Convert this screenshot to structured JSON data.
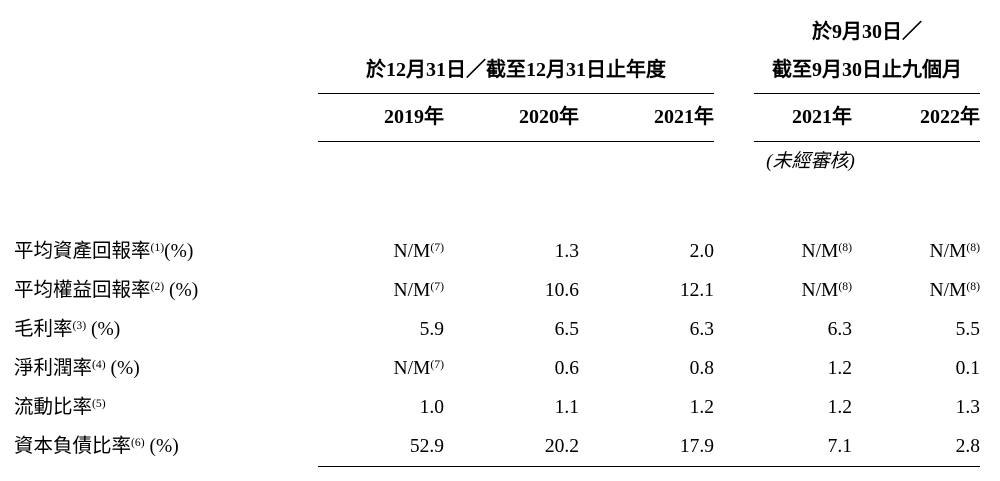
{
  "header": {
    "group1_title": "於12月31日／截至12月31日止年度",
    "group2_title_line1": "於9月30日／",
    "group2_title_line2": "截至9月30日止九個月",
    "years": [
      "2019年",
      "2020年",
      "2021年",
      "2021年",
      "2022年"
    ],
    "unaudited_note": "(未經審核)"
  },
  "rows": [
    {
      "label": "平均資產回報率",
      "label_sup": "(1)",
      "label_suffix": "(%)",
      "values": [
        {
          "v": "N/M",
          "sup": "(7)"
        },
        {
          "v": "1.3"
        },
        {
          "v": "2.0"
        },
        {
          "v": "N/M",
          "sup": "(8)"
        },
        {
          "v": "N/M",
          "sup": "(8)"
        }
      ]
    },
    {
      "label": "平均權益回報率",
      "label_sup": "(2)",
      "label_suffix": " (%)",
      "values": [
        {
          "v": "N/M",
          "sup": "(7)"
        },
        {
          "v": "10.6"
        },
        {
          "v": "12.1"
        },
        {
          "v": "N/M",
          "sup": "(8)"
        },
        {
          "v": "N/M",
          "sup": "(8)"
        }
      ]
    },
    {
      "label": "毛利率",
      "label_sup": "(3)",
      "label_suffix": " (%)",
      "values": [
        {
          "v": "5.9"
        },
        {
          "v": "6.5"
        },
        {
          "v": "6.3"
        },
        {
          "v": "6.3"
        },
        {
          "v": "5.5"
        }
      ]
    },
    {
      "label": "淨利潤率",
      "label_sup": "(4)",
      "label_suffix": " (%)",
      "values": [
        {
          "v": "N/M",
          "sup": "(7)"
        },
        {
          "v": "0.6"
        },
        {
          "v": "0.8"
        },
        {
          "v": "1.2"
        },
        {
          "v": "0.1"
        }
      ]
    },
    {
      "label": "流動比率",
      "label_sup": "(5)",
      "label_suffix": "",
      "values": [
        {
          "v": "1.0"
        },
        {
          "v": "1.1"
        },
        {
          "v": "1.2"
        },
        {
          "v": "1.2"
        },
        {
          "v": "1.3"
        }
      ]
    },
    {
      "label": "資本負債比率",
      "label_sup": "(6)",
      "label_suffix": " (%)",
      "values": [
        {
          "v": "52.9"
        },
        {
          "v": "20.2"
        },
        {
          "v": "17.9"
        },
        {
          "v": "7.1"
        },
        {
          "v": "2.8"
        }
      ]
    }
  ]
}
